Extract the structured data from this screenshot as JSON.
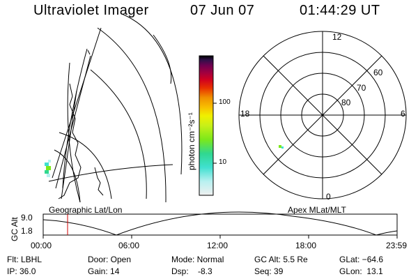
{
  "header": {
    "title": "Ultraviolet Imager",
    "date": "07 Jun 07",
    "time": "01:44:29 UT"
  },
  "left_map": {
    "caption": "Geographic Lat/Lon"
  },
  "colorbar": {
    "label": "photon cm⁻²s⁻¹",
    "ticks": [
      "100",
      "10"
    ],
    "scale": "log",
    "colors": [
      "#eeeeee",
      "#b8f0f0",
      "#40e0d0",
      "#30d890",
      "#7ce81a",
      "#c8f018",
      "#f0f000",
      "#f8c000",
      "#f09000",
      "#e83000",
      "#d00020",
      "#a00040",
      "#700050",
      "#301048",
      "#000000"
    ]
  },
  "polar": {
    "caption": "Apex MLat/MLT",
    "mlt_labels": {
      "top": "12",
      "left": "18",
      "right": "6",
      "bottom": "0"
    },
    "lat_labels": [
      "60",
      "70",
      "80"
    ]
  },
  "altitude_plot": {
    "ylabel": "GC Alt",
    "ytick_top": "9.0",
    "ytick_bottom": "1.8",
    "xticks": [
      "00:00",
      "06:00",
      "12:00",
      "18:00",
      "23:59"
    ],
    "marker_color": "#cc0000"
  },
  "info": {
    "filter": "Flt: LBHL",
    "ip": "IP: 36.0",
    "door": "Door: Open",
    "gain": "Gain: 14",
    "mode": "Mode: Normal",
    "dsp": "Dsp:    -8.3",
    "gcalt": "GC Alt: 5.5 Re",
    "seq": "Seq: 39",
    "glat": "GLat: −64.6",
    "glon": "GLon:  13.1"
  }
}
